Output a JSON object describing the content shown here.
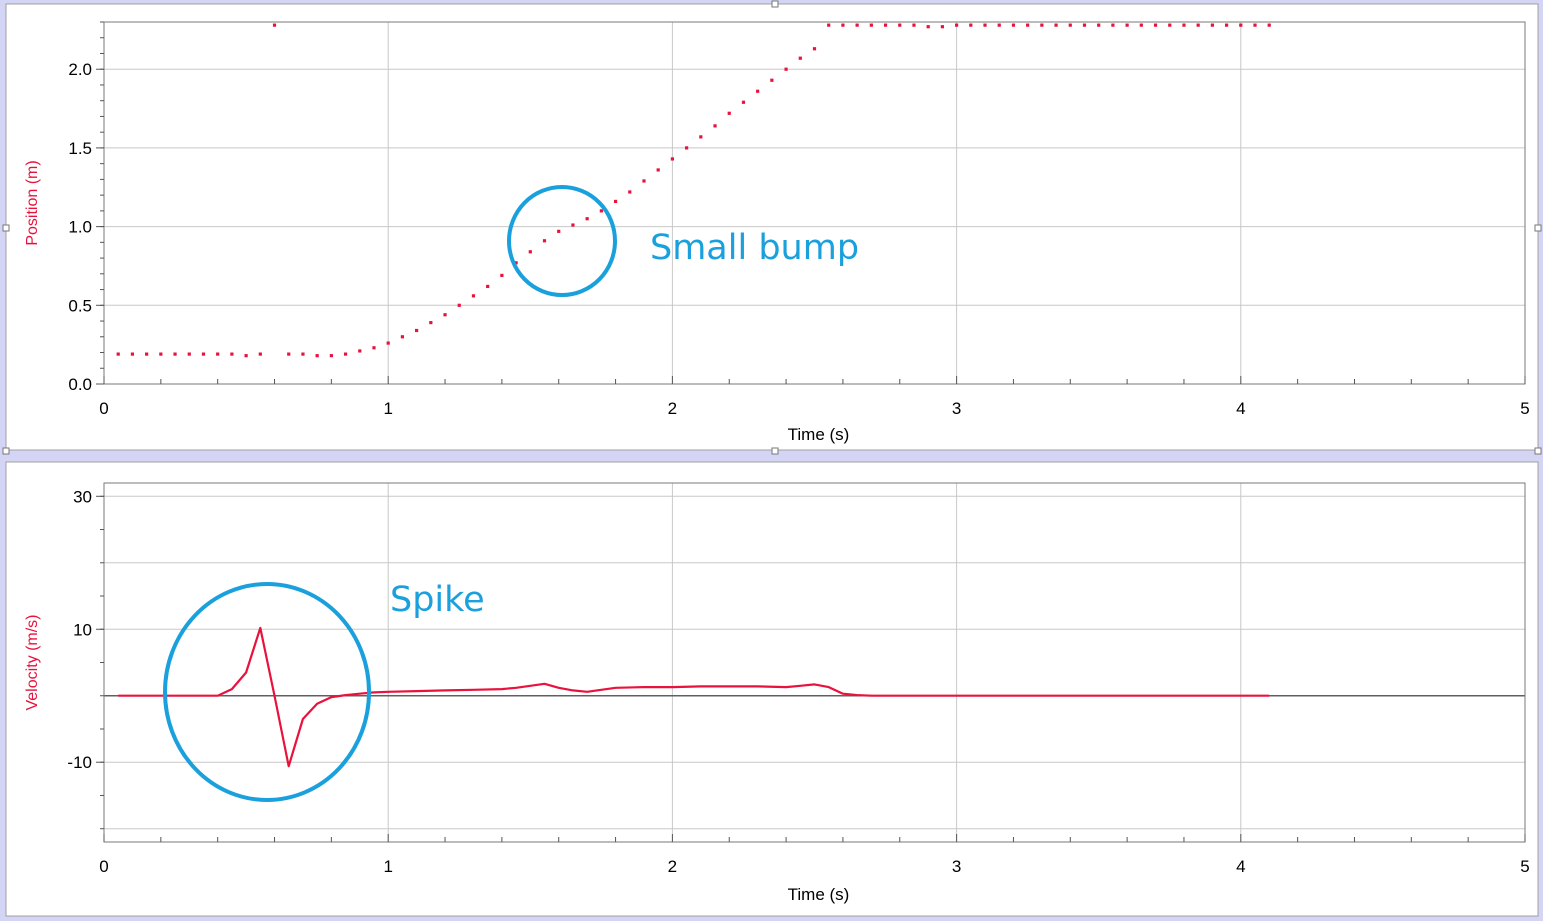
{
  "colors": {
    "series": "#e8123c",
    "annotation": "#1aa0dc",
    "grid": "#c8c8c8",
    "frame_bg": "#ffffff",
    "window_bg": "#d4d4f4"
  },
  "chart_data": [
    {
      "type": "scatter",
      "title": "",
      "xlabel": "Time (s)",
      "ylabel": "Position (m)",
      "xlim": [
        0,
        5
      ],
      "ylim": [
        0,
        2.3
      ],
      "x_ticks": [
        0,
        1,
        2,
        3,
        4,
        5
      ],
      "x_tick_labels": [
        "0",
        "1",
        "2",
        "3",
        "4",
        "5"
      ],
      "y_ticks": [
        0,
        0.5,
        1,
        1.5,
        2
      ],
      "y_tick_labels": [
        "0.0",
        "0.5",
        "1.0",
        "1.5",
        "2.0"
      ],
      "series": [
        {
          "name": "Position",
          "x": [
            0.05,
            0.1,
            0.15,
            0.2,
            0.25,
            0.3,
            0.35,
            0.4,
            0.45,
            0.5,
            0.55,
            0.6,
            0.65,
            0.7,
            0.75,
            0.8,
            0.85,
            0.9,
            0.95,
            1.0,
            1.05,
            1.1,
            1.15,
            1.2,
            1.25,
            1.3,
            1.35,
            1.4,
            1.45,
            1.5,
            1.55,
            1.6,
            1.65,
            1.7,
            1.75,
            1.8,
            1.85,
            1.9,
            1.95,
            2.0,
            2.05,
            2.1,
            2.15,
            2.2,
            2.25,
            2.3,
            2.35,
            2.4,
            2.45,
            2.5,
            2.55,
            2.6,
            2.65,
            2.7,
            2.75,
            2.8,
            2.85,
            2.9,
            2.95,
            3.0,
            3.05,
            3.1,
            3.15,
            3.2,
            3.25,
            3.3,
            3.35,
            3.4,
            3.45,
            3.5,
            3.55,
            3.6,
            3.65,
            3.7,
            3.75,
            3.8,
            3.85,
            3.9,
            3.95,
            4.0,
            4.05,
            4.1
          ],
          "y": [
            0.19,
            0.19,
            0.19,
            0.19,
            0.19,
            0.19,
            0.19,
            0.19,
            0.19,
            0.18,
            0.19,
            2.28,
            0.19,
            0.19,
            0.18,
            0.18,
            0.19,
            0.21,
            0.23,
            0.26,
            0.3,
            0.34,
            0.39,
            0.44,
            0.5,
            0.56,
            0.62,
            0.69,
            0.77,
            0.84,
            0.91,
            0.97,
            1.01,
            1.05,
            1.1,
            1.16,
            1.22,
            1.29,
            1.36,
            1.43,
            1.5,
            1.57,
            1.64,
            1.72,
            1.79,
            1.86,
            1.93,
            2.0,
            2.07,
            2.13,
            2.28,
            2.28,
            2.28,
            2.28,
            2.28,
            2.28,
            2.28,
            2.27,
            2.27,
            2.28,
            2.28,
            2.28,
            2.28,
            2.28,
            2.28,
            2.28,
            2.28,
            2.28,
            2.28,
            2.28,
            2.28,
            2.28,
            2.28,
            2.28,
            2.28,
            2.28,
            2.28,
            2.28,
            2.28,
            2.28,
            2.28,
            2.28
          ]
        }
      ],
      "annotations": [
        {
          "text": "Small bump",
          "target_x": 1.6,
          "target_y": 0.92
        }
      ]
    },
    {
      "type": "line",
      "title": "",
      "xlabel": "Time (s)",
      "ylabel": "Velocity (m/s)",
      "xlim": [
        0,
        5
      ],
      "ylim": [
        -22,
        32
      ],
      "x_ticks": [
        0,
        1,
        2,
        3,
        4,
        5
      ],
      "x_tick_labels": [
        "0",
        "1",
        "2",
        "3",
        "4",
        "5"
      ],
      "y_ticks": [
        -10,
        10,
        30
      ],
      "y_tick_labels": [
        "-10",
        "10",
        "30"
      ],
      "minor_y_ticks": [
        -20,
        0,
        20
      ],
      "zero_line": true,
      "series": [
        {
          "name": "Velocity",
          "x": [
            0.05,
            0.4,
            0.45,
            0.5,
            0.55,
            0.6,
            0.65,
            0.7,
            0.75,
            0.8,
            0.85,
            0.9,
            0.95,
            1.0,
            1.1,
            1.2,
            1.3,
            1.4,
            1.45,
            1.5,
            1.55,
            1.6,
            1.65,
            1.7,
            1.75,
            1.8,
            1.9,
            2.0,
            2.1,
            2.2,
            2.3,
            2.4,
            2.45,
            2.5,
            2.55,
            2.6,
            2.65,
            2.7,
            3.0,
            3.5,
            4.0,
            4.1
          ],
          "y": [
            0,
            0,
            1.0,
            3.5,
            10.2,
            0,
            -10.6,
            -3.5,
            -1.2,
            -0.2,
            0.1,
            0.3,
            0.5,
            0.6,
            0.7,
            0.8,
            0.9,
            1.0,
            1.2,
            1.5,
            1.8,
            1.2,
            0.8,
            0.6,
            0.9,
            1.2,
            1.3,
            1.3,
            1.4,
            1.4,
            1.4,
            1.3,
            1.5,
            1.7,
            1.3,
            0.3,
            0.1,
            0,
            0,
            0,
            0,
            0
          ]
        }
      ],
      "annotations": [
        {
          "text": "Spike",
          "target_x": 0.58,
          "target_y": 0
        }
      ]
    }
  ]
}
